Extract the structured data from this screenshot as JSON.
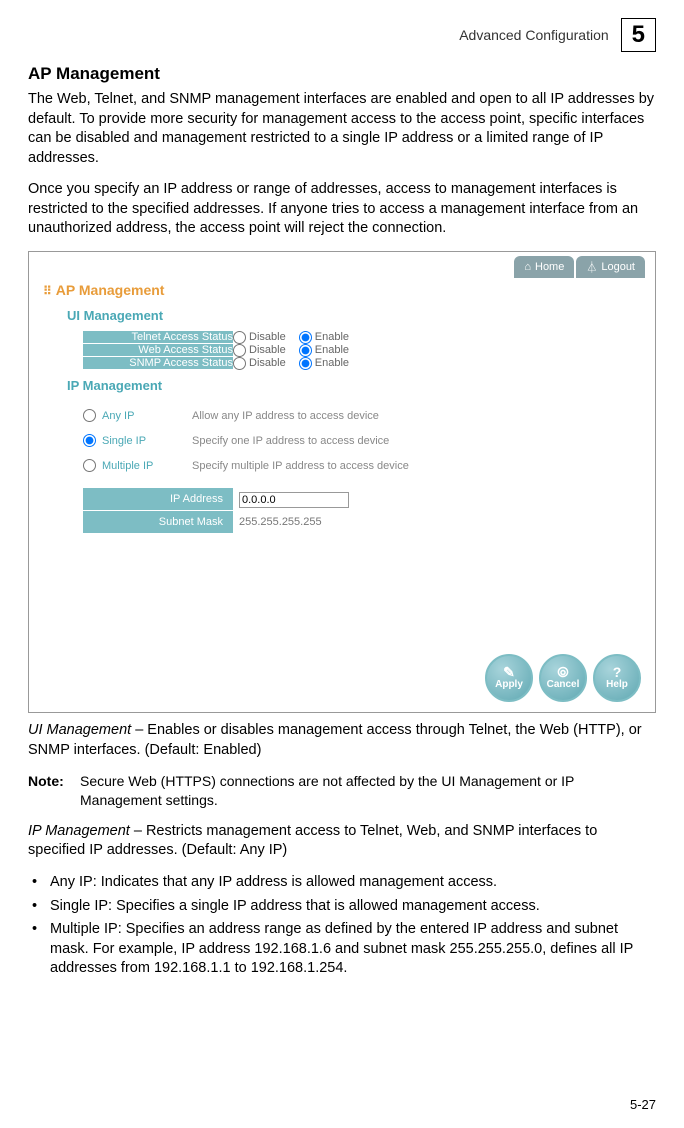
{
  "header": {
    "breadcrumb": "Advanced Configuration",
    "chapter": "5"
  },
  "title": "AP Management",
  "para1": "The Web, Telnet, and SNMP management interfaces are enabled and open to all IP addresses by default. To provide more security for management access to the access point, specific interfaces can be disabled and management restricted to a single IP address or a limited range of IP addresses.",
  "para2": "Once you specify an IP address or range of addresses, access to management interfaces is restricted to the specified addresses. If anyone tries to access a management interface from an unauthorized address, the access point will reject the connection.",
  "screenshot": {
    "top_nav": {
      "home": "Home",
      "logout": "Logout"
    },
    "panel_title": "AP Management",
    "ui_mgmt": {
      "heading": "UI Management",
      "rows": [
        {
          "label": "Telnet Access Status",
          "disable": "Disable",
          "enable": "Enable",
          "selected": "enable"
        },
        {
          "label": "Web Access Status",
          "disable": "Disable",
          "enable": "Enable",
          "selected": "enable"
        },
        {
          "label": "SNMP Access Status",
          "disable": "Disable",
          "enable": "Enable",
          "selected": "enable"
        }
      ]
    },
    "ip_mgmt": {
      "heading": "IP Management",
      "options": [
        {
          "name": "Any IP",
          "desc": "Allow any IP address to access device",
          "selected": false
        },
        {
          "name": "Single IP",
          "desc": "Specify one IP address to access device",
          "selected": true
        },
        {
          "name": "Multiple IP",
          "desc": "Specify multiple IP address to access device",
          "selected": false
        }
      ],
      "fields": {
        "ip_label": "IP Address",
        "ip_value": "0.0.0.0",
        "mask_label": "Subnet Mask",
        "mask_value": "255.255.255.255"
      }
    },
    "buttons": {
      "apply": "Apply",
      "cancel": "Cancel",
      "help": "Help"
    }
  },
  "desc_ui_label": "UI Management",
  "desc_ui_rest": " – Enables or disables management access through Telnet, the Web (HTTP), or SNMP interfaces. (Default: Enabled)",
  "note_label": "Note:",
  "note_text": "Secure Web (HTTPS) connections are not affected by the UI Management or IP Management settings.",
  "desc_ip_label": "IP Management",
  "desc_ip_rest": " – Restricts management access to Telnet, Web, and SNMP interfaces to specified IP addresses. (Default: Any IP)",
  "bullets": [
    "Any IP: Indicates that any IP address is allowed management access.",
    "Single IP: Specifies a single IP address that is allowed management access.",
    "Multiple IP: Specifies an address range as defined by the entered IP address and subnet mask. For example, IP address 192.168.1.6 and subnet mask 255.255.255.0, defines all IP addresses from 192.168.1.1 to 192.168.1.254."
  ],
  "page_number": "5-27"
}
